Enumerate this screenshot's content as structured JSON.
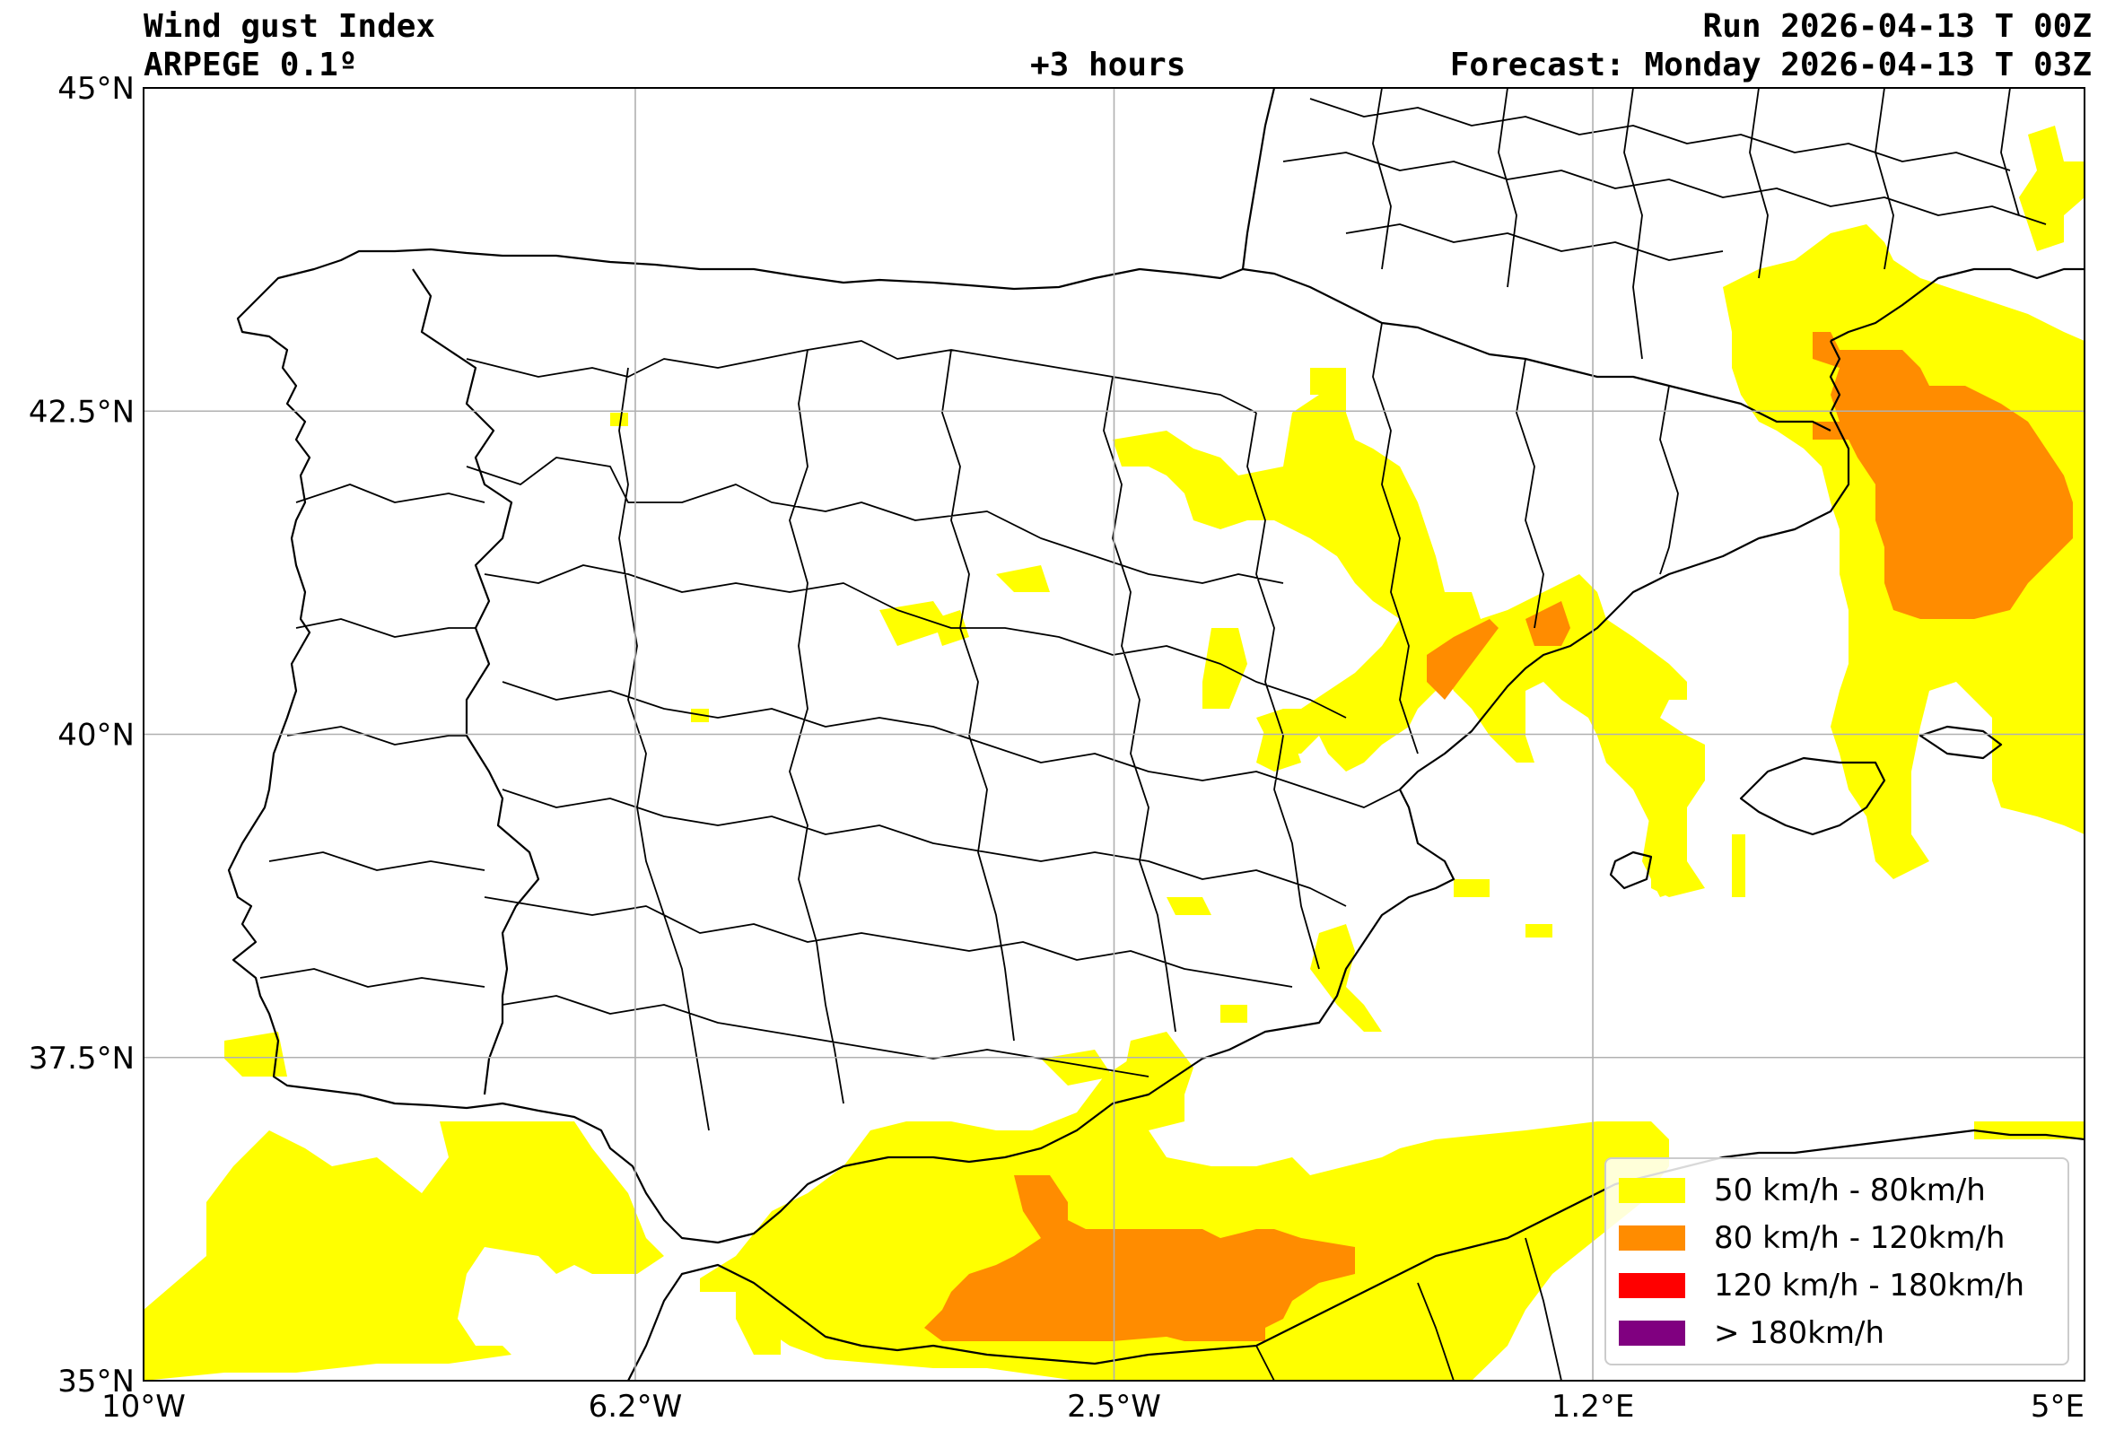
{
  "header": {
    "title": "Wind gust Index",
    "model": "ARPEGE 0.1º",
    "lead": "+3 hours",
    "run": "Run 2026-04-13 T 00Z",
    "forecast": "Forecast: Monday 2026-04-13 T 03Z"
  },
  "map": {
    "lon_range": [
      -10,
      5
    ],
    "lat_range": [
      35,
      45
    ],
    "lon_ticks": [
      {
        "value": -10.0,
        "label": "10°W"
      },
      {
        "value": -6.2,
        "label": "6.2°W"
      },
      {
        "value": -2.5,
        "label": "2.5°W"
      },
      {
        "value": 1.2,
        "label": "1.2°E"
      },
      {
        "value": 5.0,
        "label": "5°E"
      }
    ],
    "lat_ticks": [
      {
        "value": 45.0,
        "label": "45°N"
      },
      {
        "value": 42.5,
        "label": "42.5°N"
      },
      {
        "value": 40.0,
        "label": "40°N"
      },
      {
        "value": 37.5,
        "label": "37.5°N"
      },
      {
        "value": 35.0,
        "label": "35°N"
      }
    ],
    "grid": true,
    "colors": {
      "moderate": "#ffff00",
      "strong": "#ff8c00",
      "severe": "#ff0000",
      "extreme": "#800080",
      "coast": "#000000",
      "grid": "#b0b0b0"
    }
  },
  "legend": {
    "placement": "bottom-right",
    "items": [
      {
        "label": "50 km/h - 80km/h",
        "color": "#ffff00"
      },
      {
        "label": "80 km/h - 120km/h",
        "color": "#ff8c00"
      },
      {
        "label": "120 km/h - 180km/h",
        "color": "#ff0000"
      },
      {
        "label": "> 180km/h",
        "color": "#800080"
      }
    ]
  }
}
